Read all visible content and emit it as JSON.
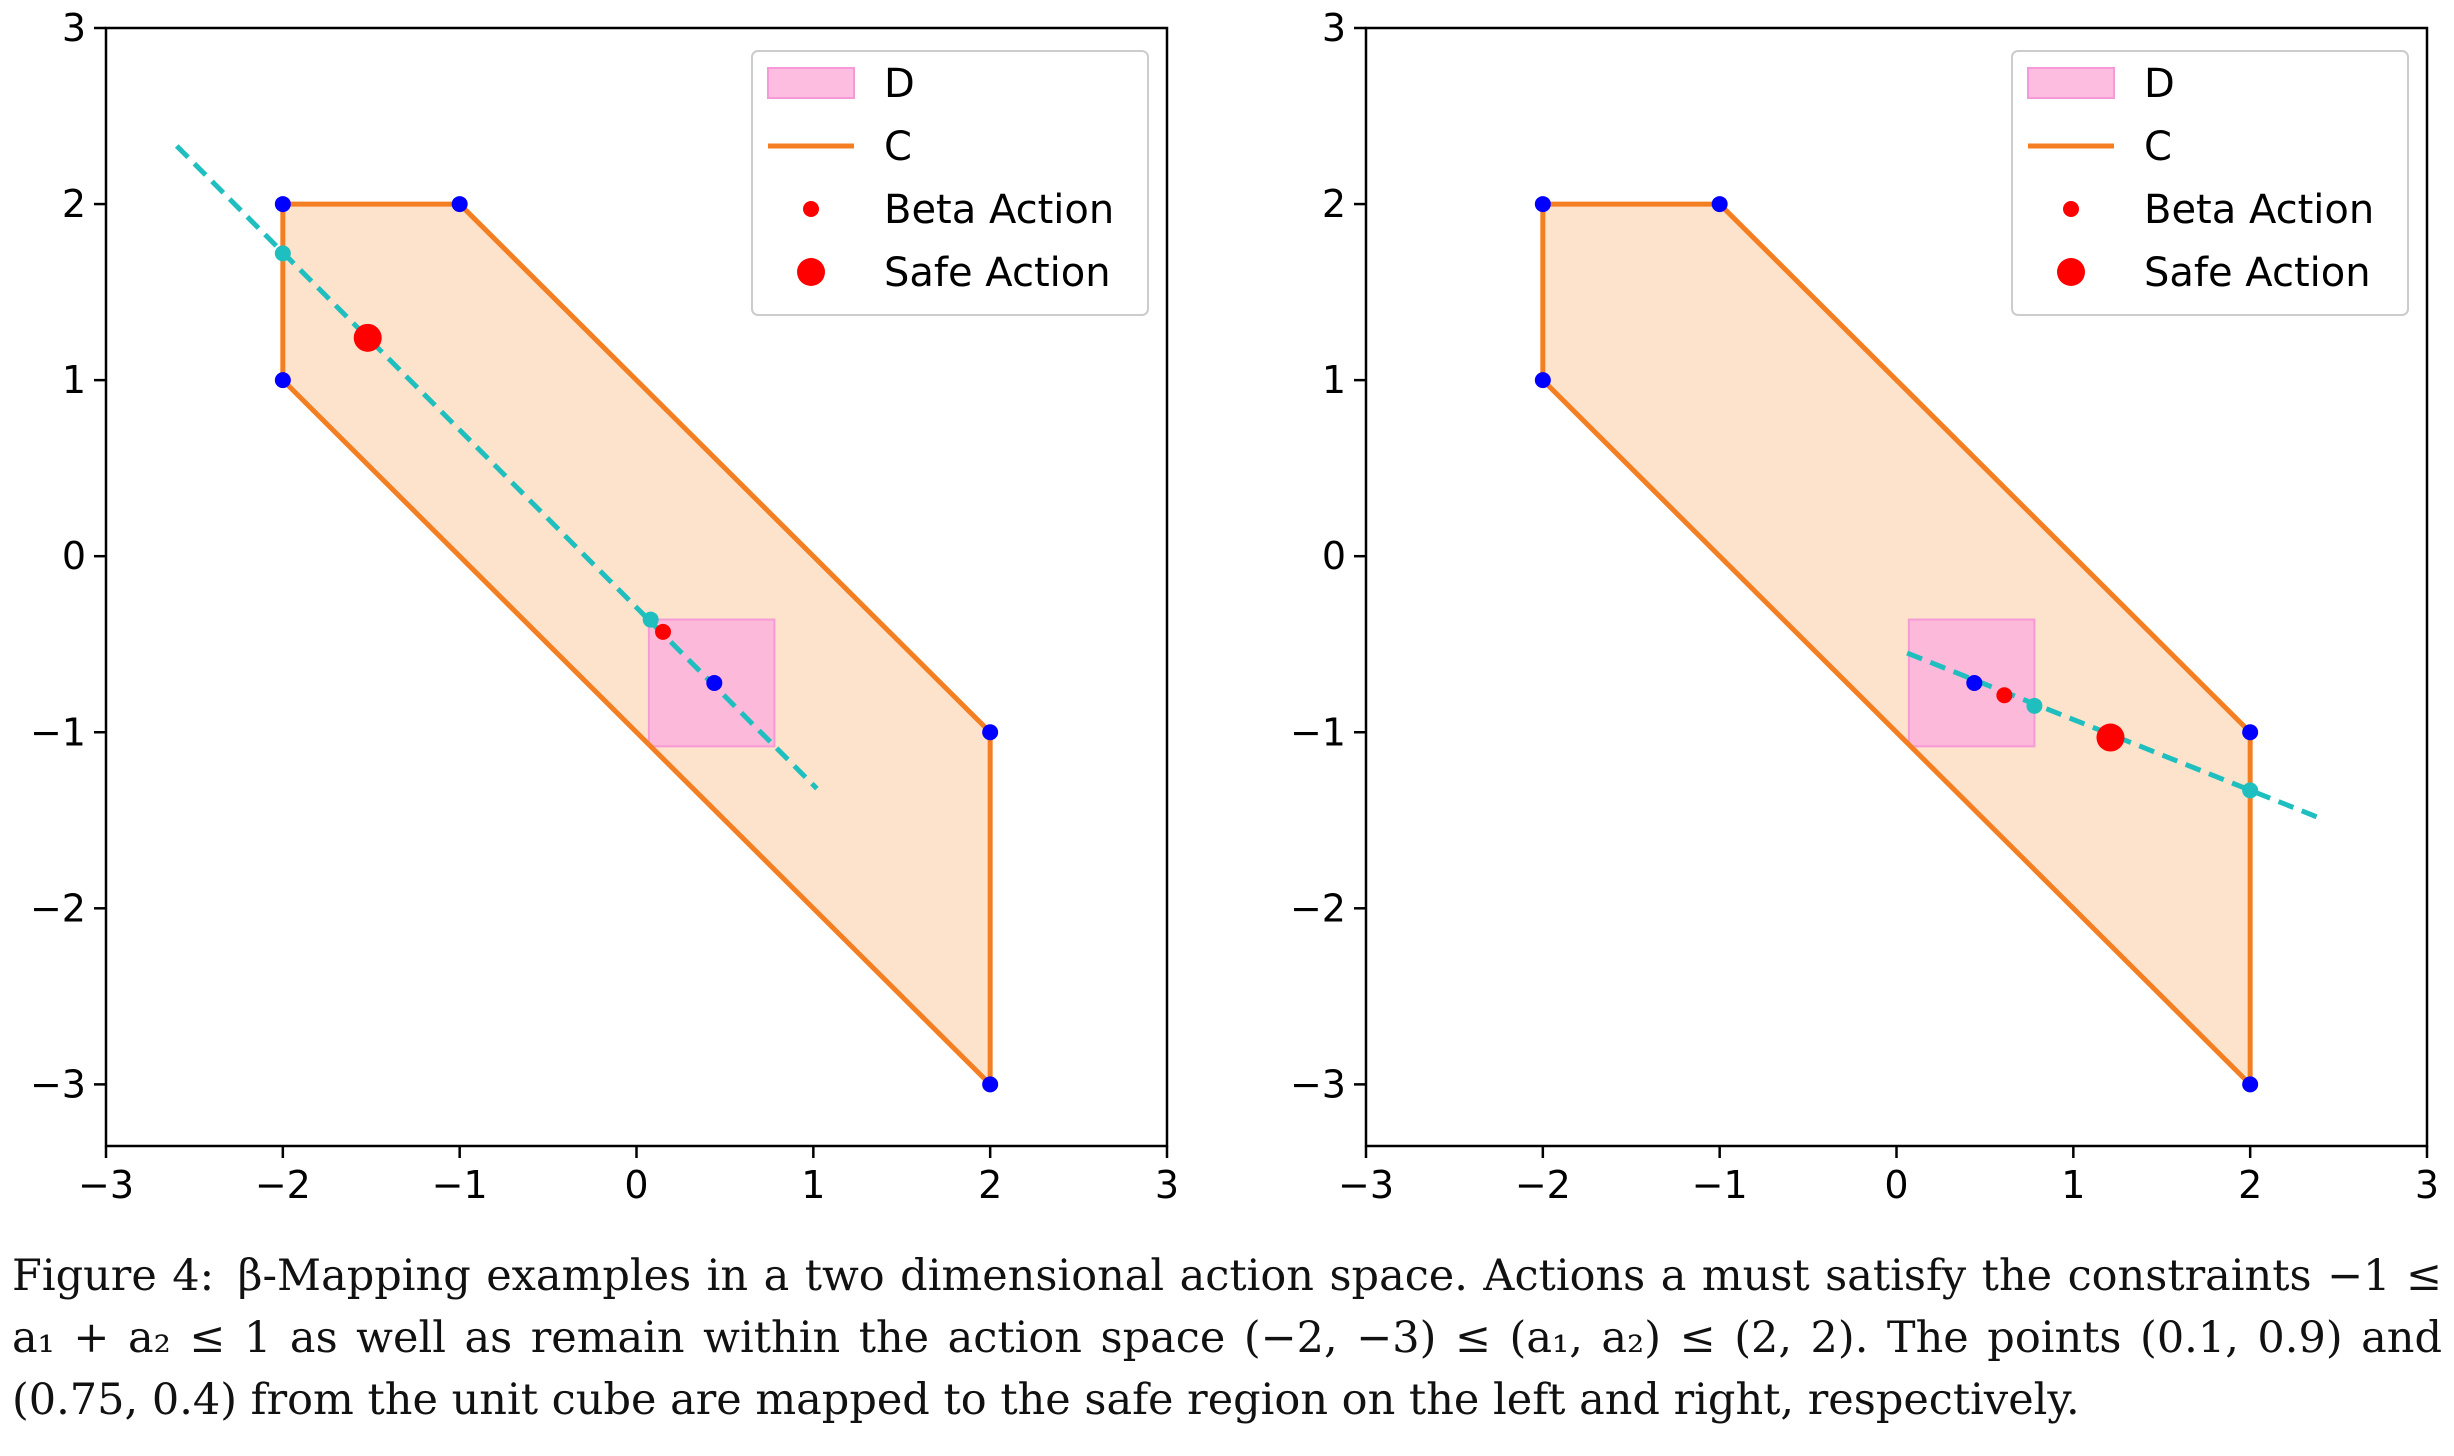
{
  "colors": {
    "safe_region_fill": "#fde3cb",
    "constraint_line": "#f47f22",
    "unit_cube_fill": "#fbb1dc",
    "unit_cube_edge": "#f59ad6",
    "vertex_point": "#0000ff",
    "mapping_line": "#1fbfbf",
    "beta_action": "#ff0000",
    "safe_action": "#ff0000"
  },
  "chart_data": [
    {
      "type": "line",
      "panel": "left",
      "xlim": [
        -3,
        3
      ],
      "ylim": [
        -3.35,
        3
      ],
      "xticks": [
        -3,
        -2,
        -1,
        0,
        1,
        2,
        3
      ],
      "yticks": [
        -3,
        -2,
        -1,
        0,
        1,
        2,
        3
      ],
      "tick_labels_x": [
        "−3",
        "−2",
        "−1",
        "0",
        "1",
        "2",
        "3"
      ],
      "tick_labels_y": [
        "−3",
        "−2",
        "−1",
        "0",
        "1",
        "2",
        "3"
      ],
      "grid": false,
      "legend_position": "top-right",
      "legend": [
        {
          "label": "D",
          "kind": "patch",
          "color": "#fbb1dc"
        },
        {
          "label": "C",
          "kind": "line",
          "color": "#f47f22"
        },
        {
          "label": "Beta Action",
          "kind": "small-dot",
          "color": "#ff0000"
        },
        {
          "label": "Safe Action",
          "kind": "large-dot",
          "color": "#ff0000"
        }
      ],
      "safe_region_C": [
        [
          -2,
          1
        ],
        [
          -2,
          2
        ],
        [
          -1,
          2
        ],
        [
          2,
          -1
        ],
        [
          2,
          -3
        ]
      ],
      "unit_cube_D": [
        [
          0.07,
          -1.08
        ],
        [
          0.78,
          -0.36
        ]
      ],
      "vertices": [
        [
          -2,
          2
        ],
        [
          -1,
          2
        ],
        [
          -2,
          1
        ],
        [
          2,
          -1
        ],
        [
          2,
          -3
        ]
      ],
      "mapping_line": [
        [
          -2.6,
          2.33
        ],
        [
          1.02,
          -1.32
        ]
      ],
      "intersections": [
        [
          -2.0,
          1.72
        ],
        [
          0.08,
          -0.36
        ]
      ],
      "unit_point": [
        0.44,
        -0.72
      ],
      "beta_action": [
        0.15,
        -0.43
      ],
      "safe_action": [
        -1.52,
        1.24
      ]
    },
    {
      "type": "line",
      "panel": "right",
      "xlim": [
        -3,
        3
      ],
      "ylim": [
        -3.35,
        3
      ],
      "xticks": [
        -3,
        -2,
        -1,
        0,
        1,
        2,
        3
      ],
      "yticks": [
        -3,
        -2,
        -1,
        0,
        1,
        2,
        3
      ],
      "tick_labels_x": [
        "−3",
        "−2",
        "−1",
        "0",
        "1",
        "2",
        "3"
      ],
      "tick_labels_y": [
        "−3",
        "−2",
        "−1",
        "0",
        "1",
        "2",
        "3"
      ],
      "grid": false,
      "legend_position": "top-right",
      "legend": [
        {
          "label": "D",
          "kind": "patch",
          "color": "#fbb1dc"
        },
        {
          "label": "C",
          "kind": "line",
          "color": "#f47f22"
        },
        {
          "label": "Beta Action",
          "kind": "small-dot",
          "color": "#ff0000"
        },
        {
          "label": "Safe Action",
          "kind": "large-dot",
          "color": "#ff0000"
        }
      ],
      "safe_region_C": [
        [
          -2,
          1
        ],
        [
          -2,
          2
        ],
        [
          -1,
          2
        ],
        [
          2,
          -1
        ],
        [
          2,
          -3
        ]
      ],
      "unit_cube_D": [
        [
          0.07,
          -1.08
        ],
        [
          0.78,
          -0.36
        ]
      ],
      "vertices": [
        [
          -2,
          2
        ],
        [
          -1,
          2
        ],
        [
          -2,
          1
        ],
        [
          2,
          -1
        ],
        [
          2,
          -3
        ]
      ],
      "mapping_line": [
        [
          0.06,
          -0.55
        ],
        [
          2.4,
          -1.49
        ]
      ],
      "intersections": [
        [
          0.78,
          -0.85
        ],
        [
          2.0,
          -1.33
        ]
      ],
      "unit_point": [
        0.44,
        -0.72
      ],
      "beta_action": [
        0.61,
        -0.79
      ],
      "safe_action": [
        1.21,
        -1.03
      ]
    }
  ],
  "caption": {
    "label": "Figure 4:",
    "text": "β-Mapping examples in a two dimensional action space. Actions a must satisfy the constraints −1 ≤ a₁ + a₂ ≤ 1 as well as remain within the action space (−2, −3) ≤ (a₁, a₂) ≤ (2, 2). The points (0.1, 0.9) and (0.75, 0.4) from the unit cube are mapped to the safe region on the left and right, respectively."
  }
}
